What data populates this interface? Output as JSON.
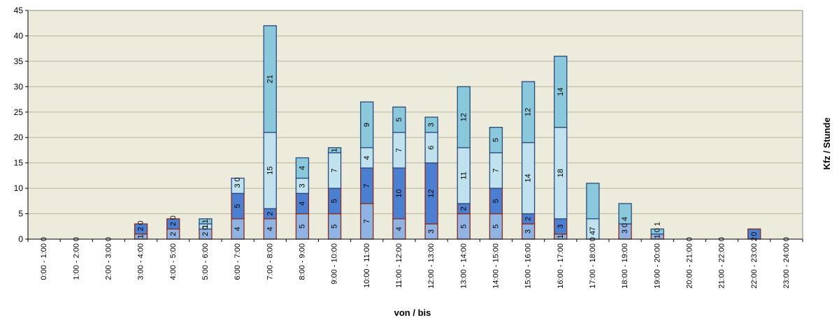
{
  "chart_data": {
    "type": "bar",
    "stacked": true,
    "categories": [
      "0:00 - 1:00",
      "1:00 - 2:00",
      "2:00 - 3:00",
      "3:00 - 4:00",
      "4:00 - 5:00",
      "5:00 - 6:00",
      "6:00 - 7:00",
      "7:00 - 8:00",
      "8:00 - 9:00",
      "9:00 - 10:00",
      "10:00 - 11:00",
      "11:00 - 12:00",
      "12:00 - 13:00",
      "13:00 - 14:00",
      "14:00 - 15:00",
      "15:00 - 16:00",
      "16:00 - 17:00",
      "17:00 - 18:00",
      "18:00 - 19:00",
      "19:00 - 20:00",
      "20:00 - 21:00",
      "21:00 - 22:00",
      "22:00 - 23:00",
      "23:00 - 24:00"
    ],
    "series": [
      {
        "color": "#8fb4e3",
        "edge": "#8b2a1a",
        "values": [
          0,
          0,
          0,
          1,
          2,
          2,
          4,
          4,
          5,
          5,
          7,
          4,
          3,
          5,
          5,
          3,
          1,
          0,
          3,
          1,
          0,
          0,
          0,
          0
        ]
      },
      {
        "color": "#4a7fd1",
        "edge": "#8b2a1a",
        "values": [
          0,
          0,
          0,
          2,
          2,
          0,
          5,
          2,
          4,
          5,
          7,
          10,
          12,
          2,
          5,
          2,
          3,
          0,
          0,
          0,
          0,
          0,
          2,
          0
        ]
      },
      {
        "color": "#bfe2ee",
        "edge": "#2a4a7a",
        "values": [
          0,
          0,
          0,
          0,
          0,
          1,
          3,
          15,
          3,
          7,
          4,
          7,
          6,
          11,
          7,
          14,
          18,
          4,
          0,
          0,
          0,
          0,
          0,
          0
        ]
      },
      {
        "color": "#8ac8dc",
        "edge": "#2a4a7a",
        "values": [
          0,
          0,
          0,
          0,
          0,
          1,
          0,
          21,
          4,
          1,
          9,
          5,
          3,
          12,
          5,
          12,
          14,
          7,
          4,
          1,
          0,
          0,
          0,
          0
        ]
      }
    ],
    "visible_labels": [
      [
        "0"
      ],
      [
        "0"
      ],
      [
        "0"
      ],
      [
        "1",
        "2",
        "0"
      ],
      [
        "2",
        "2",
        "0"
      ],
      [
        "2",
        "0",
        "1",
        "1"
      ],
      [
        "4",
        "5",
        "3",
        "0"
      ],
      [
        "4",
        "2",
        "15",
        "21"
      ],
      [
        "5",
        "4",
        "3",
        "4"
      ],
      [
        "5",
        "5",
        "7",
        "1"
      ],
      [
        "7",
        "7",
        "4",
        "9"
      ],
      [
        "4",
        "10",
        "7",
        "5"
      ],
      [
        "3",
        "12",
        "6",
        "3"
      ],
      [
        "5",
        "2",
        "11",
        "12"
      ],
      [
        "5",
        "5",
        "7",
        "5"
      ],
      [
        "3",
        "2",
        "14",
        "12"
      ],
      [
        "1",
        "3",
        "18",
        "14"
      ],
      [
        "0",
        "4",
        "7"
      ],
      [
        "3",
        "0",
        "4"
      ],
      [
        "1",
        "0",
        "1"
      ],
      [
        "0"
      ],
      [
        "0"
      ],
      [
        "2",
        "0"
      ],
      [
        "0"
      ]
    ],
    "xlabel": "von / bis",
    "ylabel": "Kfz / Stunde",
    "ylim": [
      0,
      45
    ],
    "yticks": [
      "0",
      "5",
      "10",
      "15",
      "20",
      "25",
      "30",
      "35",
      "40",
      "45"
    ],
    "grid": true,
    "plot_background": "#ecebdc",
    "grid_color": "#b8b79e"
  }
}
